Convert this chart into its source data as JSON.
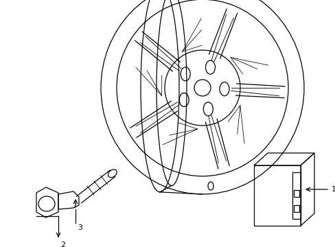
{
  "background_color": "#ffffff",
  "line_color": "#000000",
  "fig_width": 4.89,
  "fig_height": 3.6,
  "dpi": 100,
  "label_1": "1",
  "label_2": "2",
  "label_3": "3"
}
